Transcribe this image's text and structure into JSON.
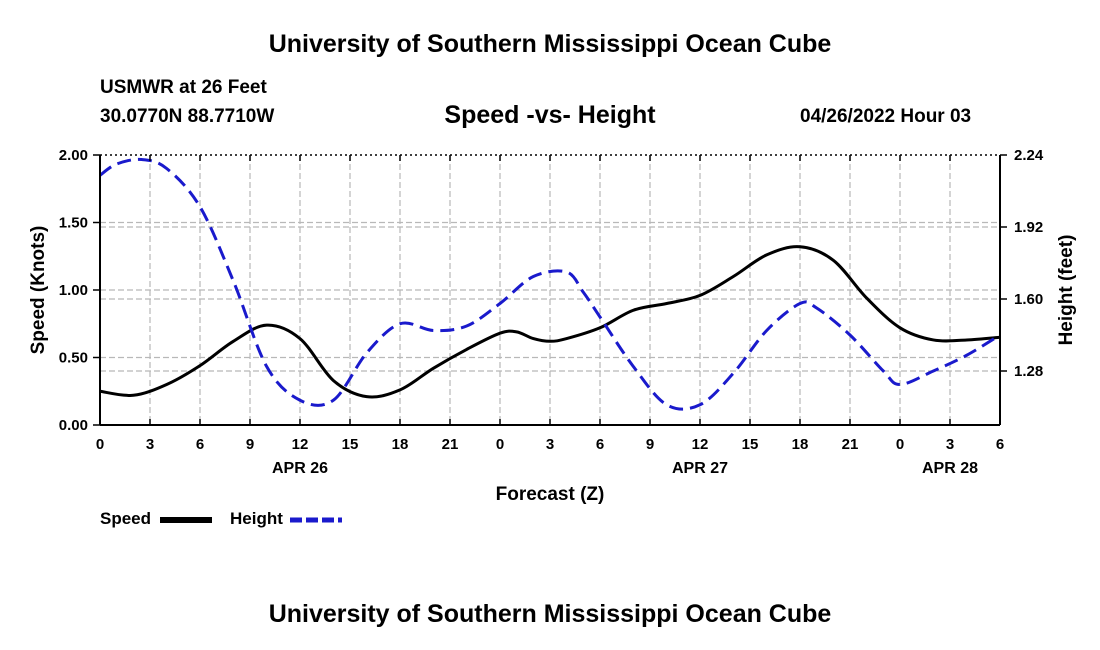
{
  "header": {
    "title": "University of Southern Mississippi Ocean Cube",
    "station": "USMWR at 26 Feet",
    "coords": "30.0770N  88.7710W",
    "subtitle": "Speed -vs- Height",
    "datetime": "04/26/2022 Hour 03"
  },
  "footer": {
    "title": "University of Southern Mississippi Ocean Cube"
  },
  "legend": {
    "speed_label": "Speed",
    "height_label": "Height"
  },
  "colors": {
    "speed": "#000000",
    "height": "#1a1acc",
    "grid": "#b8b8b8"
  },
  "chart_data": {
    "type": "line",
    "xlabel": "Forecast (Z)",
    "ylabel": "Speed (Knots)",
    "y2label": "Height (feet)",
    "xlim": [
      0,
      54
    ],
    "ylim": [
      0,
      2.0
    ],
    "y2lim": [
      1.04,
      2.24
    ],
    "x_ticks": [
      0,
      3,
      6,
      9,
      12,
      15,
      18,
      21,
      24,
      27,
      30,
      33,
      36,
      39,
      42,
      45,
      48,
      51,
      54
    ],
    "x_tick_labels": [
      "0",
      "3",
      "6",
      "9",
      "12",
      "15",
      "18",
      "21",
      "0",
      "3",
      "6",
      "9",
      "12",
      "15",
      "18",
      "21",
      "0",
      "3",
      "6"
    ],
    "y_ticks": [
      0.0,
      0.5,
      1.0,
      1.5,
      2.0
    ],
    "y_tick_labels": [
      "0.00",
      "0.50",
      "1.00",
      "1.50",
      "2.00"
    ],
    "y2_ticks": [
      1.28,
      1.6,
      1.92,
      2.24
    ],
    "y2_tick_labels": [
      "1.28",
      "1.60",
      "1.92",
      "2.24"
    ],
    "date_labels": [
      {
        "x": 12,
        "label": "APR 26"
      },
      {
        "x": 36,
        "label": "APR 27"
      },
      {
        "x": 51,
        "label": "APR 28"
      }
    ],
    "grid": true,
    "series": [
      {
        "name": "Speed",
        "axis": "left",
        "style": "solid",
        "x": [
          0,
          2,
          4,
          6,
          8,
          10,
          12,
          14,
          16,
          18,
          20,
          22,
          24,
          25,
          26,
          27,
          28,
          30,
          32,
          34,
          36,
          38,
          40,
          42,
          44,
          46,
          48,
          50,
          52,
          54
        ],
        "values": [
          0.25,
          0.22,
          0.3,
          0.44,
          0.62,
          0.74,
          0.64,
          0.33,
          0.21,
          0.26,
          0.42,
          0.56,
          0.68,
          0.69,
          0.64,
          0.62,
          0.64,
          0.72,
          0.85,
          0.9,
          0.96,
          1.1,
          1.26,
          1.32,
          1.22,
          0.94,
          0.72,
          0.63,
          0.63,
          0.65
        ]
      },
      {
        "name": "Height",
        "axis": "right",
        "style": "dashed",
        "x": [
          0,
          1,
          2.5,
          4,
          6,
          8,
          10,
          12,
          14,
          16,
          18,
          20,
          22,
          24,
          26,
          28,
          29,
          30,
          32,
          34,
          36,
          38,
          40,
          42,
          43,
          45,
          47,
          48,
          50,
          52,
          54
        ],
        "values": [
          2.15,
          2.2,
          2.22,
          2.18,
          2.01,
          1.68,
          1.3,
          1.15,
          1.15,
          1.36,
          1.49,
          1.46,
          1.48,
          1.58,
          1.7,
          1.72,
          1.63,
          1.52,
          1.3,
          1.13,
          1.13,
          1.27,
          1.46,
          1.58,
          1.56,
          1.44,
          1.28,
          1.22,
          1.28,
          1.35,
          1.44
        ]
      }
    ]
  }
}
